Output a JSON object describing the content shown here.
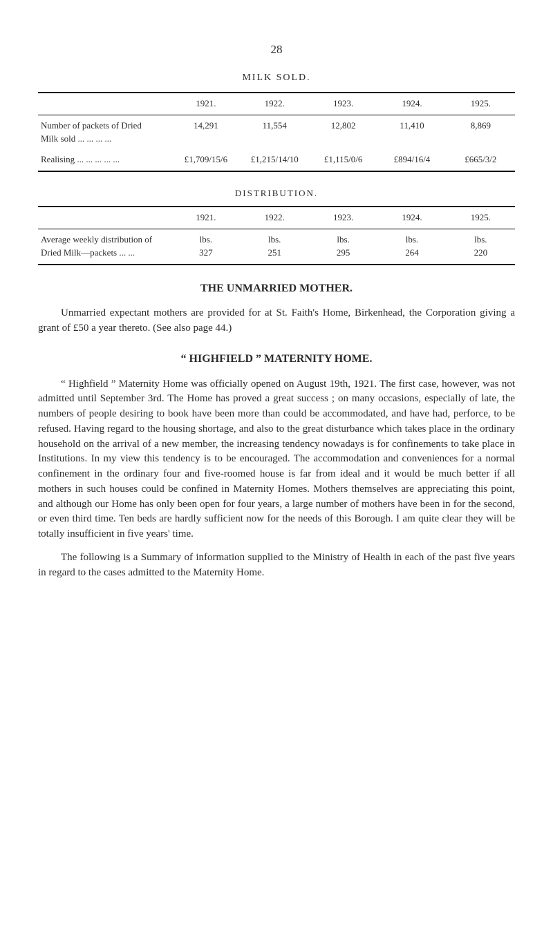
{
  "page_number": "28",
  "milk_sold_title": "MILK SOLD.",
  "distribution_title": "DISTRIBUTION.",
  "years": [
    "1921.",
    "1922.",
    "1923.",
    "1924.",
    "1925."
  ],
  "milk_sold": {
    "row1_label": "Number of packets of Dried\n    Milk sold    ...  ...  ...  ...",
    "row2_label": "Realising ...  ...  ...  ...  ...",
    "row1": [
      "14,291",
      "11,554",
      "12,802",
      "11,410",
      "8,869"
    ],
    "row2": [
      "£1,709/15/6",
      "£1,215/14/10",
      "£1,115/0/6",
      "£894/16/4",
      "£665/3/2"
    ]
  },
  "distribution": {
    "row_label": "Average weekly distribution of\n  Dried Milk—packets ...  ...",
    "unit_row": [
      "lbs.",
      "lbs.",
      "lbs.",
      "lbs.",
      "lbs."
    ],
    "value_row": [
      "327",
      "251",
      "295",
      "264",
      "220"
    ]
  },
  "heading1": "THE UNMARRIED MOTHER.",
  "para1": "Unmarried expectant mothers are provided for at St. Faith's Home, Birkenhead, the Corporation giving a grant of £50 a year thereto.   (See also page 44.)",
  "heading2": "“ HIGHFIELD ” MATERNITY HOME.",
  "para2": "“ Highfield ” Maternity Home was officially opened on August 19th, 1921.  The first case, however, was not admitted until September 3rd.  The Home has proved a great success ; on many occasions, especially of late, the numbers of people desiring to book have been more than could be accommodated, and have had, perforce, to be refused.  Having regard to the housing shortage, and also to the great disturbance which takes place in the ordinary household on the arrival of a new member, the increasing tendency nowadays is for confinements to take place in Institutions.  In my view this tendency is to be encouraged.  The accommodation and conveniences for a normal confinement in the ordinary four and five-roomed house is far from ideal and it would be much better if all mothers in such houses could be confined in Maternity Homes.  Mothers themselves are appreciating this point, and although our Home has only been open for four years, a large number of mothers have been in for the second, or even third time.  Ten beds are hardly sufficient now for the needs of this Borough.  I am quite clear they will be totally insufficient in five years' time.",
  "para3": "The following is a Summary of information supplied to the Ministry of Health in each of the past five years in regard to the cases admitted to the Maternity Home."
}
